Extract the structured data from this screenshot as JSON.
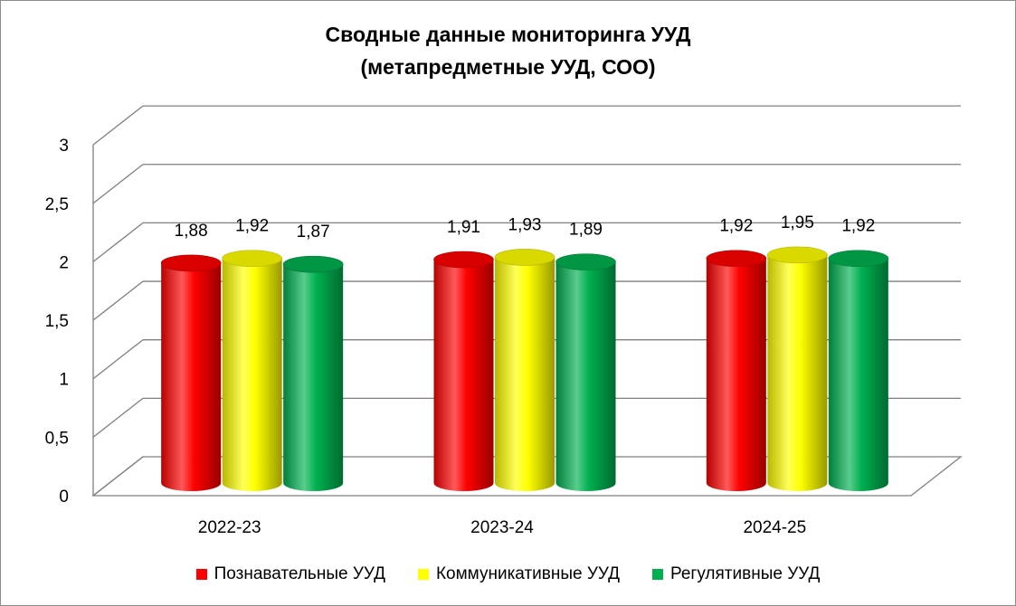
{
  "chart_data": {
    "type": "bar",
    "title": "Сводные данные мониторинга УУД",
    "subtitle": "(метапредметные УУД, СОО)",
    "categories": [
      "2022-23",
      "2023-24",
      "2024-25"
    ],
    "series": [
      {
        "name": "Познавательные УУД",
        "values": [
          1.88,
          1.91,
          1.92
        ],
        "color": "#ff0000"
      },
      {
        "name": "Коммуникативные УУД",
        "values": [
          1.92,
          1.93,
          1.95
        ],
        "color": "#ffff00"
      },
      {
        "name": "Регулятивные УУД",
        "values": [
          1.87,
          1.89,
          1.92
        ],
        "color": "#00b050"
      }
    ],
    "data_labels": [
      [
        "1,88",
        "1,92",
        "1,87"
      ],
      [
        "1,91",
        "1,93",
        "1,89"
      ],
      [
        "1,92",
        "1,95",
        "1,92"
      ]
    ],
    "y_ticks": [
      "0",
      "0,5",
      "1",
      "1,5",
      "2",
      "2,5",
      "3"
    ],
    "ylim": [
      0,
      3
    ],
    "grid": true,
    "legend_position": "bottom",
    "style": "3d-cylinder"
  }
}
